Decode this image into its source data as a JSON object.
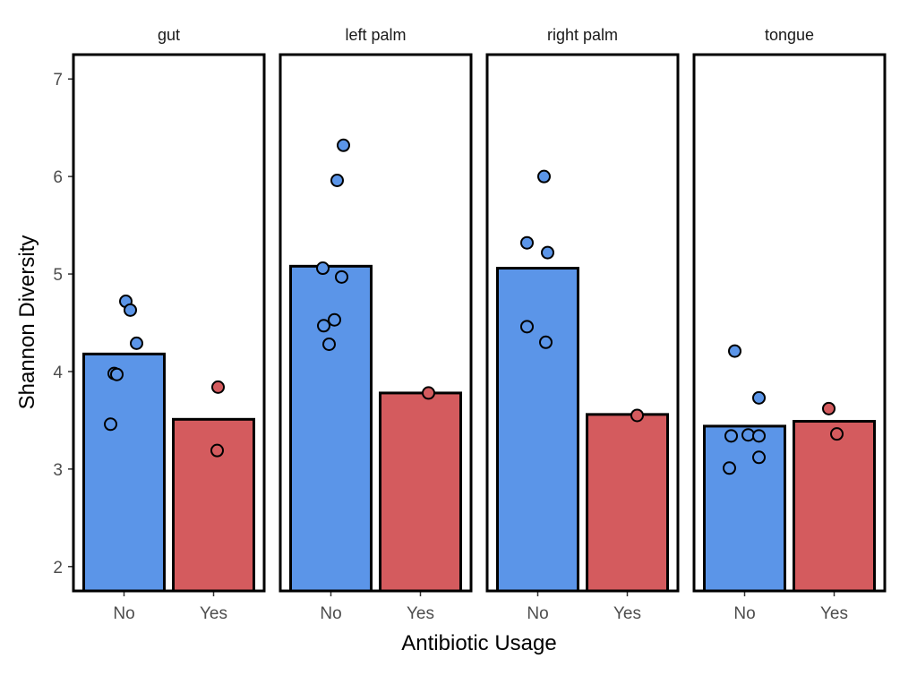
{
  "chart_data": {
    "type": "bar",
    "xlabel": "Antibiotic Usage",
    "ylabel": "Shannon Diversity",
    "ylim": [
      1.75,
      7.25
    ],
    "yticks": [
      2,
      3,
      4,
      5,
      6,
      7
    ],
    "categories": [
      "No",
      "Yes"
    ],
    "colors": {
      "No": "#5b95e8",
      "Yes": "#d45b5e"
    },
    "panels": [
      {
        "title": "gut",
        "bars": {
          "No": 4.18,
          "Yes": 3.51
        },
        "points": [
          {
            "group": "No",
            "x": 0.02,
            "y": 4.72
          },
          {
            "group": "No",
            "x": 0.07,
            "y": 4.63
          },
          {
            "group": "No",
            "x": 0.14,
            "y": 4.29
          },
          {
            "group": "No",
            "x": -0.11,
            "y": 3.98
          },
          {
            "group": "No",
            "x": -0.08,
            "y": 3.97
          },
          {
            "group": "No",
            "x": -0.15,
            "y": 3.46
          },
          {
            "group": "Yes",
            "x": 0.05,
            "y": 3.84
          },
          {
            "group": "Yes",
            "x": 0.04,
            "y": 3.19
          }
        ]
      },
      {
        "title": "left palm",
        "bars": {
          "No": 5.08,
          "Yes": 3.78
        },
        "points": [
          {
            "group": "No",
            "x": 0.14,
            "y": 6.32
          },
          {
            "group": "No",
            "x": 0.07,
            "y": 5.96
          },
          {
            "group": "No",
            "x": -0.09,
            "y": 5.06
          },
          {
            "group": "No",
            "x": 0.12,
            "y": 4.97
          },
          {
            "group": "No",
            "x": 0.04,
            "y": 4.53
          },
          {
            "group": "No",
            "x": -0.08,
            "y": 4.47
          },
          {
            "group": "No",
            "x": -0.02,
            "y": 4.28
          },
          {
            "group": "Yes",
            "x": 0.09,
            "y": 3.78
          }
        ]
      },
      {
        "title": "right palm",
        "bars": {
          "No": 5.06,
          "Yes": 3.56
        },
        "points": [
          {
            "group": "No",
            "x": 0.07,
            "y": 6.0
          },
          {
            "group": "No",
            "x": -0.12,
            "y": 5.32
          },
          {
            "group": "No",
            "x": 0.11,
            "y": 5.22
          },
          {
            "group": "No",
            "x": -0.12,
            "y": 4.46
          },
          {
            "group": "No",
            "x": 0.09,
            "y": 4.3
          },
          {
            "group": "Yes",
            "x": 0.11,
            "y": 3.55
          }
        ]
      },
      {
        "title": "tongue",
        "bars": {
          "No": 3.44,
          "Yes": 3.49
        },
        "points": [
          {
            "group": "No",
            "x": -0.11,
            "y": 4.21
          },
          {
            "group": "No",
            "x": 0.16,
            "y": 3.73
          },
          {
            "group": "No",
            "x": -0.15,
            "y": 3.34
          },
          {
            "group": "No",
            "x": 0.04,
            "y": 3.35
          },
          {
            "group": "No",
            "x": 0.16,
            "y": 3.34
          },
          {
            "group": "No",
            "x": 0.16,
            "y": 3.12
          },
          {
            "group": "No",
            "x": -0.17,
            "y": 3.01
          },
          {
            "group": "Yes",
            "x": -0.06,
            "y": 3.62
          },
          {
            "group": "Yes",
            "x": 0.03,
            "y": 3.36
          }
        ]
      }
    ]
  }
}
